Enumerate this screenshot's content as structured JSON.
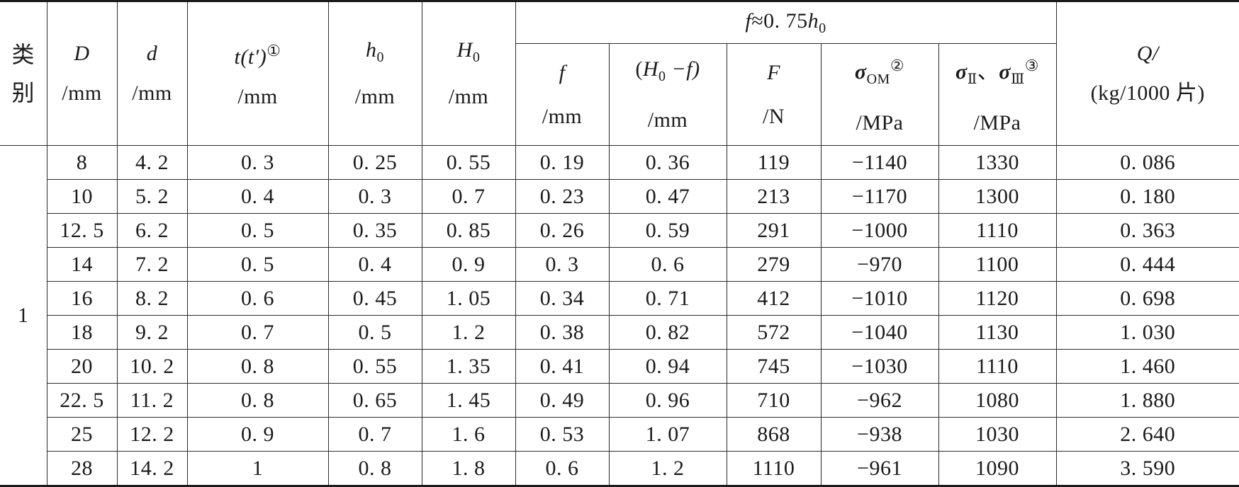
{
  "header": {
    "category": "类别",
    "D": {
      "sym": "D",
      "unit": "/mm"
    },
    "d": {
      "sym": "d",
      "unit": "/mm"
    },
    "t": {
      "sym": "t(t′)",
      "mark": "①",
      "unit": "/mm"
    },
    "h0": {
      "sym": "h",
      "sub": "0",
      "unit": "/mm"
    },
    "H0": {
      "sym": "H",
      "sub": "0",
      "unit": "/mm"
    },
    "group": {
      "pre": "f",
      "mid": "≈0. 75",
      "sym": "h",
      "sub": "0"
    },
    "f": {
      "sym": "f",
      "unit": "/mm"
    },
    "H0f": {
      "pre": "(",
      "sym": "H",
      "sub": "0",
      "post": " −f)",
      "unit": "/mm"
    },
    "F": {
      "sym": "F",
      "unit": "/N"
    },
    "sigmaOM": {
      "sym": "σ",
      "sub": "OM",
      "mark": "②",
      "unit": "/MPa"
    },
    "sigma23": {
      "sym": "σ",
      "sub1": "Ⅱ",
      "sep": "、",
      "sym2": "σ",
      "sub2": "Ⅲ",
      "mark": "③",
      "unit": "/MPa"
    },
    "Q": {
      "sym": "Q/",
      "unit": "(kg/1000 片)"
    }
  },
  "category_value": "1",
  "rows": [
    [
      "8",
      "4. 2",
      "0. 3",
      "0. 25",
      "0. 55",
      "0. 19",
      "0. 36",
      "119",
      "−1140",
      "1330",
      "0. 086"
    ],
    [
      "10",
      "5. 2",
      "0. 4",
      "0. 3",
      "0. 7",
      "0. 23",
      "0. 47",
      "213",
      "−1170",
      "1300",
      "0. 180"
    ],
    [
      "12. 5",
      "6. 2",
      "0. 5",
      "0. 35",
      "0. 85",
      "0. 26",
      "0. 59",
      "291",
      "−1000",
      "1110",
      "0. 363"
    ],
    [
      "14",
      "7. 2",
      "0. 5",
      "0. 4",
      "0. 9",
      "0. 3",
      "0. 6",
      "279",
      "−970",
      "1100",
      "0. 444"
    ],
    [
      "16",
      "8. 2",
      "0. 6",
      "0. 45",
      "1. 05",
      "0. 34",
      "0. 71",
      "412",
      "−1010",
      "1120",
      "0. 698"
    ],
    [
      "18",
      "9. 2",
      "0. 7",
      "0. 5",
      "1. 2",
      "0. 38",
      "0. 82",
      "572",
      "−1040",
      "1130",
      "1. 030"
    ],
    [
      "20",
      "10. 2",
      "0. 8",
      "0. 55",
      "1. 35",
      "0. 41",
      "0. 94",
      "745",
      "−1030",
      "1110",
      "1. 460"
    ],
    [
      "22. 5",
      "11. 2",
      "0. 8",
      "0. 65",
      "1. 45",
      "0. 49",
      "0. 96",
      "710",
      "−962",
      "1080",
      "1. 880"
    ],
    [
      "25",
      "12. 2",
      "0. 9",
      "0. 7",
      "1. 6",
      "0. 53",
      "1. 07",
      "868",
      "−938",
      "1030",
      "2. 640"
    ],
    [
      "28",
      "14. 2",
      "1",
      "0. 8",
      "1. 8",
      "0. 6",
      "1. 2",
      "1110",
      "−961",
      "1090",
      "3. 590"
    ]
  ]
}
